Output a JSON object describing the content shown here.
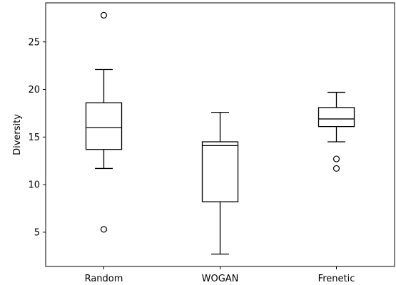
{
  "chart_data": {
    "type": "box",
    "title": "",
    "xlabel": "",
    "ylabel": "Diversity",
    "ylim": [
      1.4,
      29.1
    ],
    "yticks": [
      5,
      10,
      15,
      20,
      25
    ],
    "categories": [
      "Random",
      "WOGAN",
      "Frenetic"
    ],
    "boxes": [
      {
        "label": "Random",
        "whisker_low": 11.7,
        "q1": 13.7,
        "median": 16.0,
        "q3": 18.6,
        "whisker_high": 22.1,
        "outliers": [
          27.8,
          5.3
        ]
      },
      {
        "label": "WOGAN",
        "whisker_low": 2.7,
        "q1": 8.2,
        "median": 14.1,
        "q3": 14.5,
        "whisker_high": 17.6,
        "outliers": []
      },
      {
        "label": "Frenetic",
        "whisker_low": 14.5,
        "q1": 16.1,
        "median": 16.9,
        "q3": 18.1,
        "whisker_high": 19.7,
        "outliers": [
          12.7,
          11.7
        ]
      }
    ],
    "grid": false,
    "colors": {
      "line": "#000000",
      "median": "#000000",
      "background": "#ffffff"
    }
  }
}
